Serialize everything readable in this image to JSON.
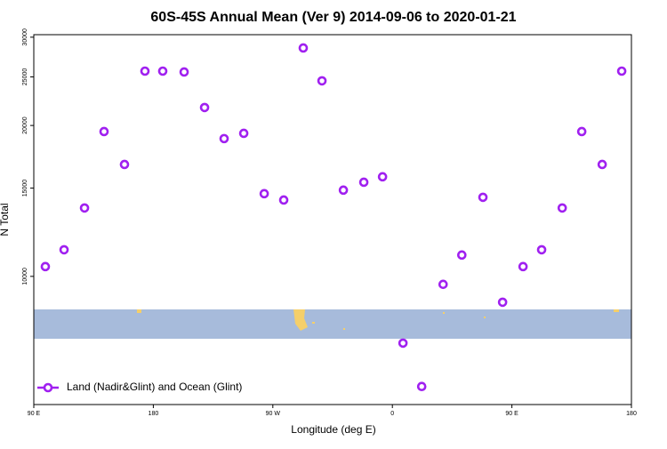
{
  "chart_data": {
    "type": "scatter",
    "title": "60S-45S Annual Mean (Ver 9)   2014-09-06 to 2020-01-21",
    "x_label": "Longitude (deg E)",
    "y_label": "N Total",
    "x": [
      98.7,
      112.8,
      128.2,
      142.9,
      158.3,
      173.7,
      187.1,
      203.2,
      218.6,
      233.3,
      248.1,
      263.5,
      278.2,
      292.9,
      307.0,
      323.1,
      338.5,
      352.6,
      368.0,
      382.1,
      398.2,
      412.3,
      428.2,
      443.0,
      458.4,
      472.4,
      487.9,
      502.6,
      518.0,
      532.7
    ],
    "series": [
      {
        "name": "Land (Nadir&Glint) and Ocean (Glint)",
        "color": "#a020f0",
        "values": [
          10460,
          11300,
          13690,
          19450,
          16720,
          25670,
          25670,
          25570,
          21720,
          18830,
          19290,
          14620,
          14200,
          28550,
          24550,
          14860,
          15410,
          15800,
          7360,
          6030,
          9640,
          11030,
          14380,
          8880,
          10460,
          11300,
          13690,
          19450,
          16720,
          25670
        ]
      }
    ],
    "xlim": [
      90,
      540
    ],
    "xticks": [
      {
        "value": 90,
        "label": "90 E"
      },
      180,
      {
        "value": 270,
        "label": "90 W"
      },
      {
        "value": 360,
        "label": "0"
      },
      {
        "value": 450,
        "label": "90 E"
      },
      {
        "value": 540,
        "label": "180"
      }
    ],
    "ylim": [
      5550,
      30350
    ],
    "yticks": [
      10000,
      15000,
      20000,
      25000,
      30000
    ],
    "log_y": true,
    "grid": false,
    "legend": "bottom-left"
  }
}
